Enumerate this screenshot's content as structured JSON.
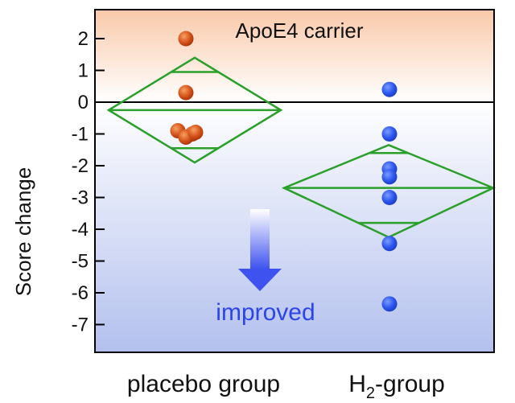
{
  "chart_data": {
    "type": "scatter",
    "ylabel": "Score change",
    "ylim": [
      -7.85,
      2.95
    ],
    "yticks": [
      2,
      1,
      0,
      -1,
      -2,
      -3,
      -4,
      -5,
      -6,
      -7
    ],
    "categories": [
      "placebo group",
      "H2-group"
    ],
    "annotation": "ApoE4 carrier",
    "improved_label": "improved",
    "series": [
      {
        "category": "placebo group",
        "color": "#cc4a10",
        "points": [
          2.0,
          0.3,
          -0.9,
          -1.0,
          -1.1,
          -0.95
        ],
        "mean_diamond": {
          "center": -0.25,
          "upper": 1.4,
          "lower": -1.9,
          "upper_line": 0.95,
          "lower_line": -1.45
        }
      },
      {
        "category": "H2-group",
        "color": "#2b55e8",
        "points": [
          0.4,
          -1.0,
          -2.1,
          -2.35,
          -3.0,
          -4.45,
          -6.35
        ],
        "mean_diamond": {
          "center": -2.7,
          "upper": -1.35,
          "lower": -4.25,
          "upper_line": -1.6,
          "lower_line": -3.8
        }
      }
    ],
    "colors": {
      "diamond": "#2aa02a",
      "positive_bg": "#f7c9a8",
      "negative_bg": "#b8c4f0",
      "arrow": "#3a50f0"
    }
  }
}
